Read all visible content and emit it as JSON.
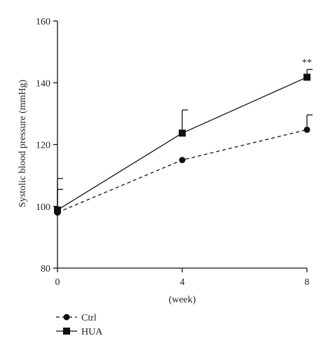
{
  "chart_data": {
    "type": "line",
    "xlabel": "(week)",
    "ylabel": "Systolic blood pressure (mmHg)",
    "x": [
      0,
      4,
      8
    ],
    "xticks": [
      "0",
      "4",
      "8"
    ],
    "yticks": [
      "80",
      "100",
      "120",
      "140",
      "160"
    ],
    "xlim": [
      0,
      8
    ],
    "ylim": [
      80,
      160
    ],
    "grid": false,
    "legend_position": "bottom-left",
    "series": [
      {
        "name": "Ctrl",
        "values": [
          98,
          115,
          124.8
        ],
        "error": [
          7.5,
          0,
          4.8
        ],
        "line_style": "dashed",
        "marker": "circle",
        "color": "#111111"
      },
      {
        "name": "HUA",
        "values": [
          98.8,
          123.7,
          141.8
        ],
        "error": [
          10.2,
          7.5,
          2.5
        ],
        "line_style": "solid",
        "marker": "square",
        "color": "#111111"
      }
    ],
    "annotations": [
      {
        "text": "**",
        "x": 8,
        "series": "HUA"
      }
    ]
  }
}
